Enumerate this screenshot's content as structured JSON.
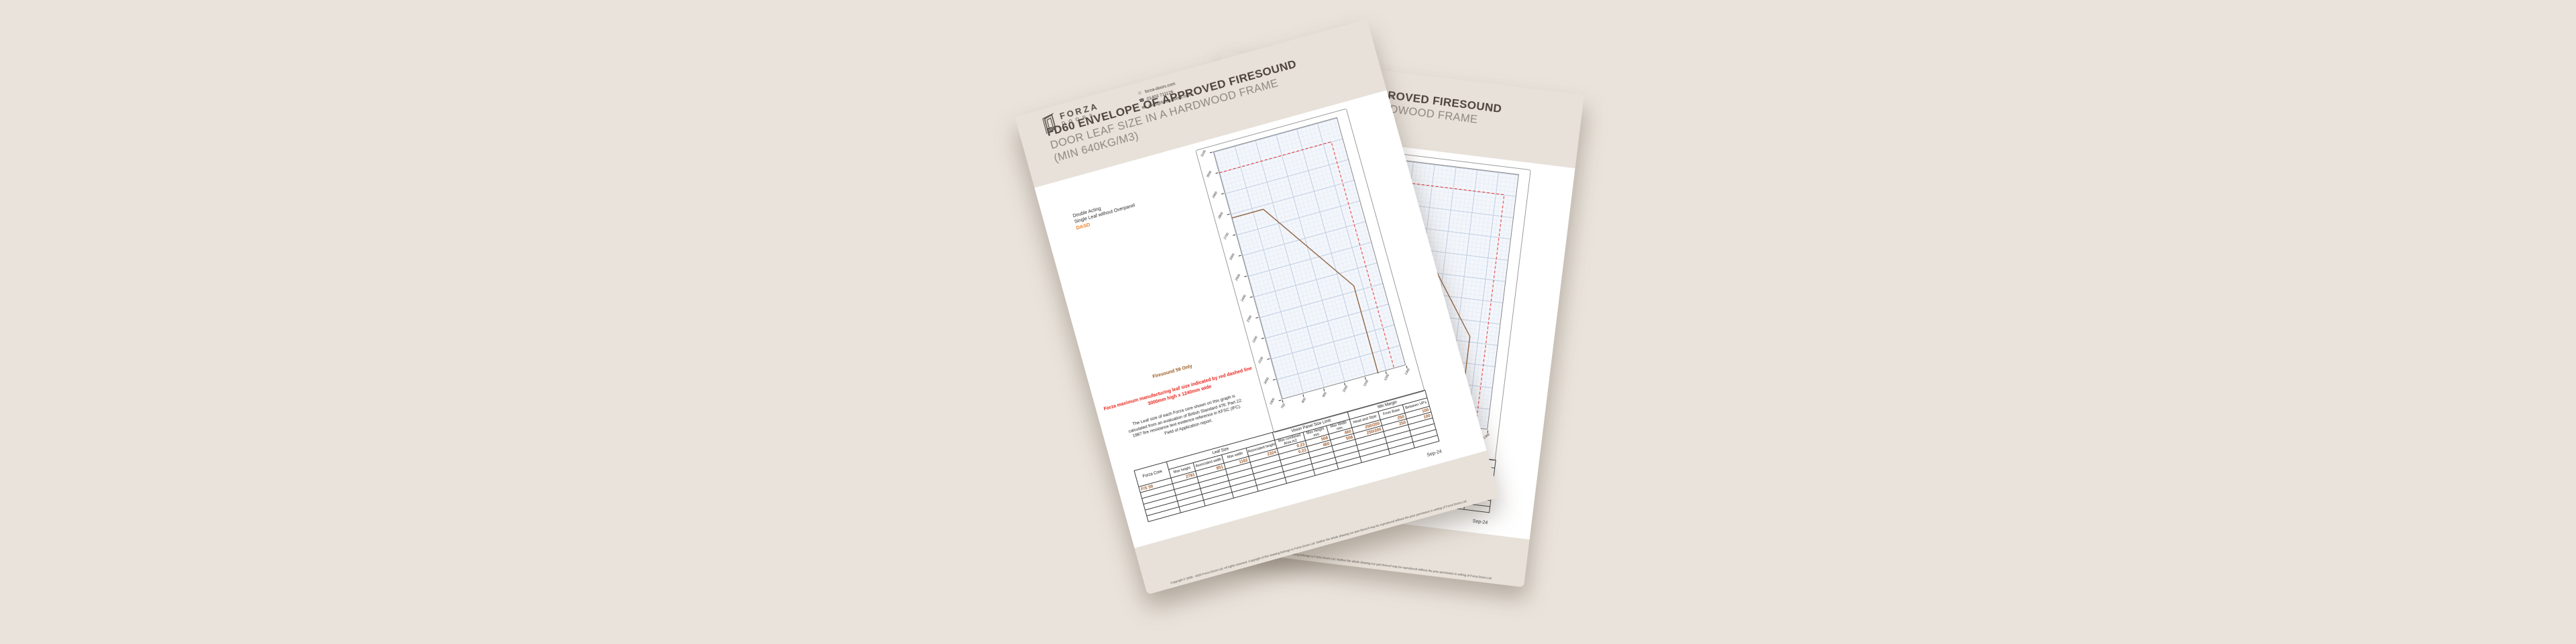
{
  "background_color": "#e9e3db",
  "accent_colors": {
    "page_band": "#e7e1d9",
    "orange": "#f17f1f",
    "value_brown": "#a05a28",
    "envelope_brown": "#8a5a35",
    "limit_red": "#ee2a20"
  },
  "page": {
    "title_line1": "FD60 ENVELOPE OF APPROVED FIRESOUND",
    "title_line2": "DOOR LEAF SIZE IN A HARDWOOD FRAME",
    "title_line3": "(MIN 640KG/M3)",
    "leaf_type_line1": "Double Acting",
    "leaf_type_line2": "Single Leaf without Overpanel",
    "leaf_code": "DASD",
    "chart_side_note": "Firesound 59 Only",
    "warning_line1": "Forza maximum manufacturing leaf size indicated by red dashed line",
    "warning_line2": "3000mm high x 1240mm wide",
    "note_line1": "The Leaf size of each Forza core shown on this graph is",
    "note_line2": "calculated from an evaluation of British Standard 476: Part 22:",
    "note_line3": "1987 fire resistance test evidence reference in KFSC (IFC).",
    "note_line4": "Field of Application report.",
    "date": "Sep-24",
    "table": {
      "corner_header": "Forza Core",
      "groups": [
        {
          "label": "Leaf Size",
          "cols": [
            "Max height",
            "Associated width",
            "Max width",
            "Associated height"
          ]
        },
        {
          "label": "Vision Panel Size Limit",
          "cols": [
            "Max combined Area m2",
            "Max Height mm",
            "Max Width mm"
          ]
        },
        {
          "label": "Min Margin",
          "cols": [
            "Head and Style",
            "From Base",
            "Between VP's"
          ]
        }
      ],
      "rows": [
        [
          "F/S 59",
          "2781",
          "851",
          "1162",
          "2324",
          "0.23",
          "508",
          "460",
          "250/200",
          "250",
          "100"
        ],
        [
          "",
          "",
          "",
          "",
          "",
          "0.23",
          "460",
          "508",
          "250/200",
          "250",
          "100"
        ],
        [
          "",
          "",
          "",
          "",
          "",
          "",
          "",
          "",
          "",
          "",
          ""
        ],
        [
          "",
          "",
          "",
          "",
          "",
          "",
          "",
          "",
          "",
          "",
          ""
        ],
        [
          "",
          "",
          "",
          "",
          "",
          "",
          "",
          "",
          "",
          "",
          ""
        ],
        [
          "",
          "",
          "",
          "",
          "",
          "",
          "",
          "",
          "",
          "",
          ""
        ]
      ]
    },
    "footer": {
      "brand_name": "FORZA",
      "brand_sub": "DOORS",
      "website": "forza-doors.com",
      "phone": "01403 711126",
      "email": "tech@forza-doors.com",
      "copyright": "Copyright © 2009 - 2025 Forza Doors Ltd. All rights reserved. Copyright of this drawing belongs to Forza Doors Ltd. Neither the whole drawing nor part thereof may be reproduced without the prior permission in writing of Forza Doors Ltd."
    }
  },
  "chart_data": {
    "type": "line",
    "title": "",
    "xlabel": "",
    "ylabel": "",
    "xlim": [
      700,
      1300
    ],
    "ylim": [
      1900,
      3100
    ],
    "xticks": [
      700,
      800,
      900,
      1000,
      1100,
      1200,
      1300
    ],
    "yticks": [
      3100,
      3000,
      2900,
      2800,
      2700,
      2600,
      2500,
      2400,
      2300,
      2200,
      2100,
      2000,
      1900
    ],
    "grid": true,
    "legend_position": "none",
    "series": [
      {
        "name": "Approved Firesound 59 leaf size envelope",
        "color": "#8a5a35",
        "style": "solid",
        "points": [
          [
            700,
            2781
          ],
          [
            851,
            2781
          ],
          [
            1162,
            2324
          ],
          [
            1162,
            1900
          ]
        ]
      },
      {
        "name": "Forza maximum manufacturing leaf size",
        "color": "#ee2a20",
        "style": "dashed",
        "points": [
          [
            700,
            3000
          ],
          [
            1240,
            3000
          ],
          [
            1240,
            1900
          ]
        ]
      }
    ]
  }
}
